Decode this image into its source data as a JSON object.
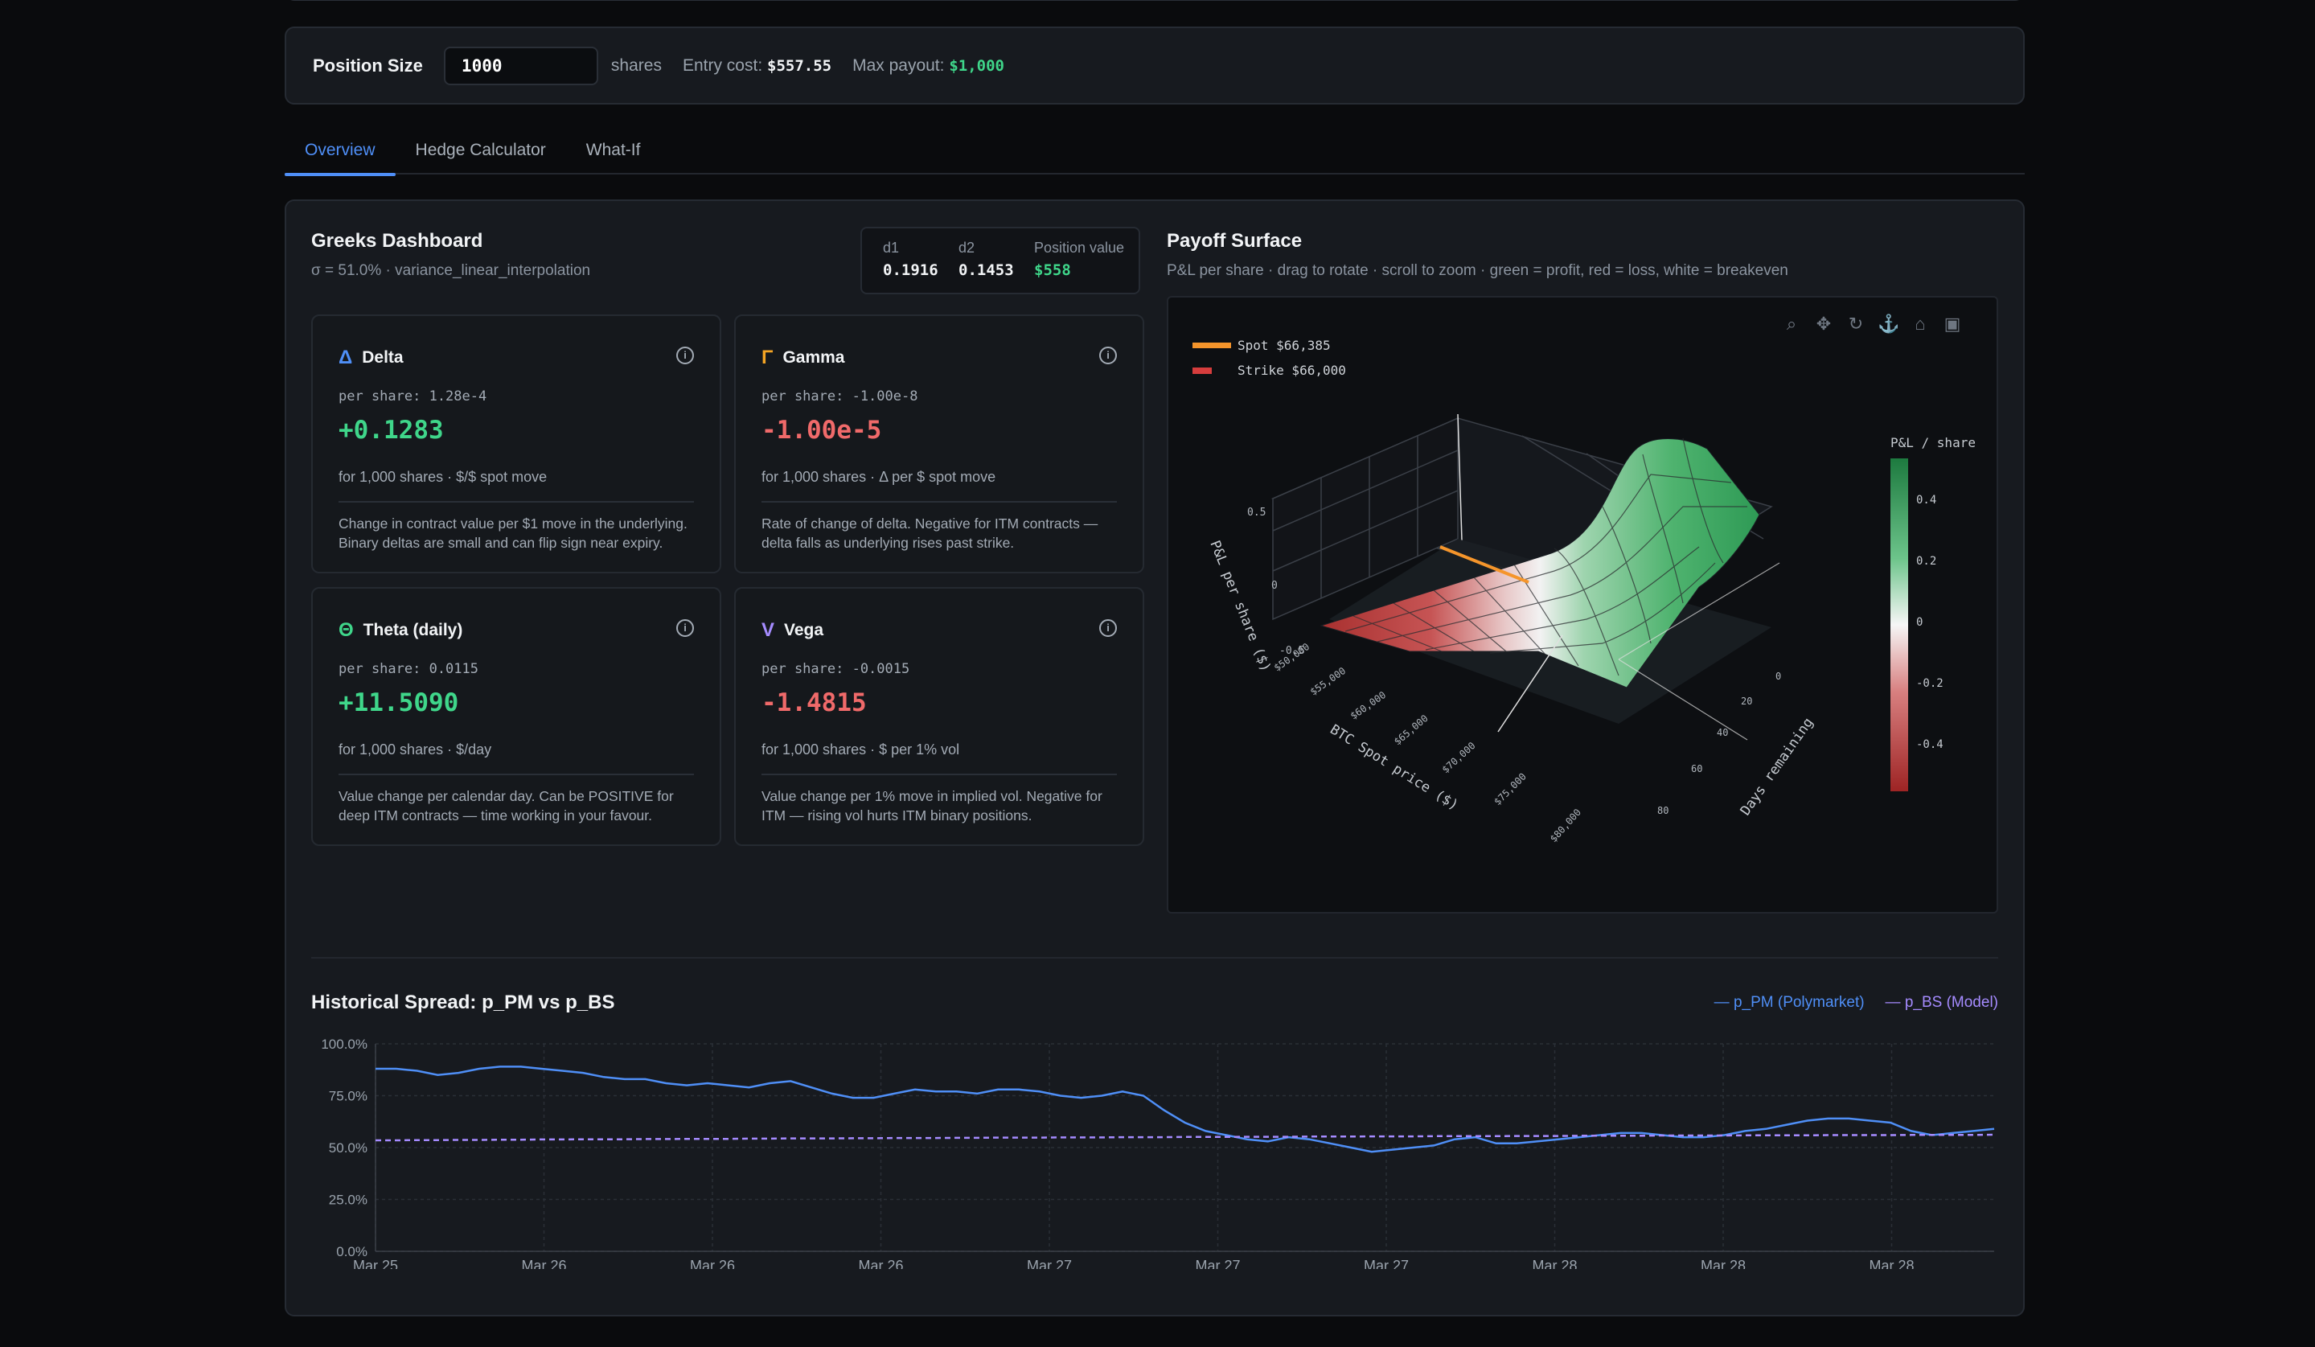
{
  "position": {
    "label": "Position Size",
    "value": "1000",
    "unit": "shares",
    "entry_label": "Entry cost:",
    "entry_value": "$557.55",
    "payout_label": "Max payout:",
    "payout_value": "$1,000"
  },
  "tabs": [
    {
      "label": "Overview",
      "active": true
    },
    {
      "label": "Hedge Calculator",
      "active": false
    },
    {
      "label": "What-If",
      "active": false
    }
  ],
  "greeks": {
    "title": "Greeks Dashboard",
    "subtitle": "σ = 51.0% · variance_linear_interpolation",
    "d1_label": "d1",
    "d1_value": "0.1916",
    "d2_label": "d2",
    "d2_value": "0.1453",
    "posval_label": "Position value",
    "posval_value": "$558",
    "cards": [
      {
        "symbol": "Δ",
        "name": "Delta",
        "per_share": "per share: 1.28e-4",
        "value": "+0.1283",
        "for": "for 1,000 shares · $/$ spot move",
        "desc": "Change in contract value per $1 move in the underlying. Binary deltas are small and can flip sign near expiry.",
        "color": "#4f8ff7",
        "tone": "positive"
      },
      {
        "symbol": "Γ",
        "name": "Gamma",
        "per_share": "per share: -1.00e-8",
        "value": "-1.00e-5",
        "for": "for 1,000 shares · Δ per $ spot move",
        "desc": "Rate of change of delta. Negative for ITM contracts — delta falls as underlying rises past strike.",
        "color": "#f5a524",
        "tone": "negative"
      },
      {
        "symbol": "Θ",
        "name": "Theta (daily)",
        "per_share": "per share: 0.0115",
        "value": "+11.5090",
        "for": "for 1,000 shares · $/day",
        "desc": "Value change per calendar day. Can be POSITIVE for deep ITM contracts — time working in your favour.",
        "color": "#3fd68a",
        "tone": "positive"
      },
      {
        "symbol": "V",
        "name": "Vega",
        "per_share": "per share: -0.0015",
        "value": "-1.4815",
        "for": "for 1,000 shares · $ per 1% vol",
        "desc": "Value change per 1% move in implied vol. Negative for ITM — rising vol hurts ITM binary positions.",
        "color": "#a58bff",
        "tone": "negative"
      }
    ]
  },
  "payoff": {
    "title": "Payoff Surface",
    "subtitle": "P&L per share · drag to rotate · scroll to zoom · green = profit, red = loss, white = breakeven",
    "legend_spot": "Spot $66,385",
    "legend_strike": "Strike $66,000",
    "colorbar_title": "P&L / share",
    "colorbar_ticks": [
      "0.4",
      "0.2",
      "0",
      "-0.2",
      "-0.4"
    ],
    "z_axis_label": "P&L per share ($)",
    "z_ticks": [
      "0.5",
      "0",
      "-0.5"
    ],
    "x_axis_label": "BTC Spot price ($)",
    "x_ticks": [
      "$50,000",
      "$55,000",
      "$60,000",
      "$65,000",
      "$70,000",
      "$75,000",
      "$80,000"
    ],
    "y_axis_label": "Days remaining",
    "y_ticks": [
      "0",
      "20",
      "40",
      "60",
      "80"
    ],
    "toolbar_icons": [
      "zoom-icon",
      "pan-icon",
      "orbit-rotation-icon",
      "turntable-rotation-icon",
      "reset-camera-icon",
      "camera-icon"
    ],
    "colors": {
      "profit": "#2ea44f",
      "loss": "#c43a3a",
      "breakeven": "#f0f0f0",
      "spot": "#f5952b",
      "strike": "#d63d3d"
    }
  },
  "history": {
    "title": "Historical Spread: p_PM vs p_BS",
    "legend_pm": "— p_PM (Polymarket)",
    "legend_bs": "— p_BS (Model)",
    "colors": {
      "pm": "#4f8ff7",
      "bs": "#a58bff"
    }
  },
  "chart_data": {
    "type": "line",
    "title": "Historical Spread: p_PM vs p_BS",
    "xlabel": "",
    "ylabel": "",
    "ylim": [
      0,
      100
    ],
    "y_ticks": [
      "100.0%",
      "75.0%",
      "50.0%",
      "25.0%",
      "0.0%"
    ],
    "x_ticks": [
      "Mar 25",
      "Mar 26",
      "Mar 26",
      "Mar 26",
      "Mar 27",
      "Mar 27",
      "Mar 27",
      "Mar 28",
      "Mar 28",
      "Mar 28"
    ],
    "grid": true,
    "legend": "top-right",
    "series": [
      {
        "name": "p_PM (Polymarket)",
        "style": "solid",
        "values": [
          88,
          88,
          87,
          85,
          86,
          88,
          89,
          89,
          88,
          87,
          86,
          84,
          83,
          83,
          81,
          80,
          81,
          80,
          79,
          81,
          82,
          79,
          76,
          74,
          74,
          76,
          78,
          77,
          77,
          76,
          78,
          78,
          77,
          75,
          74,
          75,
          77,
          75,
          68,
          62,
          58,
          56,
          54,
          53,
          55,
          54,
          52,
          50,
          48,
          49,
          50,
          51,
          54,
          55,
          52,
          52,
          53,
          54,
          55,
          56,
          57,
          57,
          56,
          55,
          55,
          56,
          58,
          59,
          61,
          63,
          64,
          64,
          63,
          62,
          58,
          56,
          57,
          58,
          59
        ]
      },
      {
        "name": "p_BS (Model)",
        "style": "dashed",
        "values": [
          53.5,
          53.5,
          53.6,
          53.6,
          53.7,
          53.7,
          53.8,
          53.8,
          53.9,
          53.9,
          54,
          54,
          54,
          54.1,
          54.1,
          54.2,
          54.2,
          54.2,
          54.3,
          54.3,
          54.4,
          54.4,
          54.4,
          54.5,
          54.5,
          54.6,
          54.6,
          54.6,
          54.7,
          54.7,
          54.8,
          54.8,
          54.8,
          54.9,
          54.9,
          54.9,
          55,
          55,
          55,
          55.1,
          55.1,
          55.1,
          55.2,
          55.2,
          55.2,
          55.3,
          55.3,
          55.3,
          55.4,
          55.4,
          55.4,
          55.5,
          55.5,
          55.5,
          55.5,
          55.6,
          55.6,
          55.6,
          55.7,
          55.7,
          55.7,
          55.7,
          55.8,
          55.8,
          55.8,
          55.8,
          55.9,
          55.9,
          55.9,
          55.9,
          56,
          56,
          56,
          56,
          56.1,
          56.1,
          56.1,
          56.1,
          56.2
        ]
      }
    ]
  }
}
